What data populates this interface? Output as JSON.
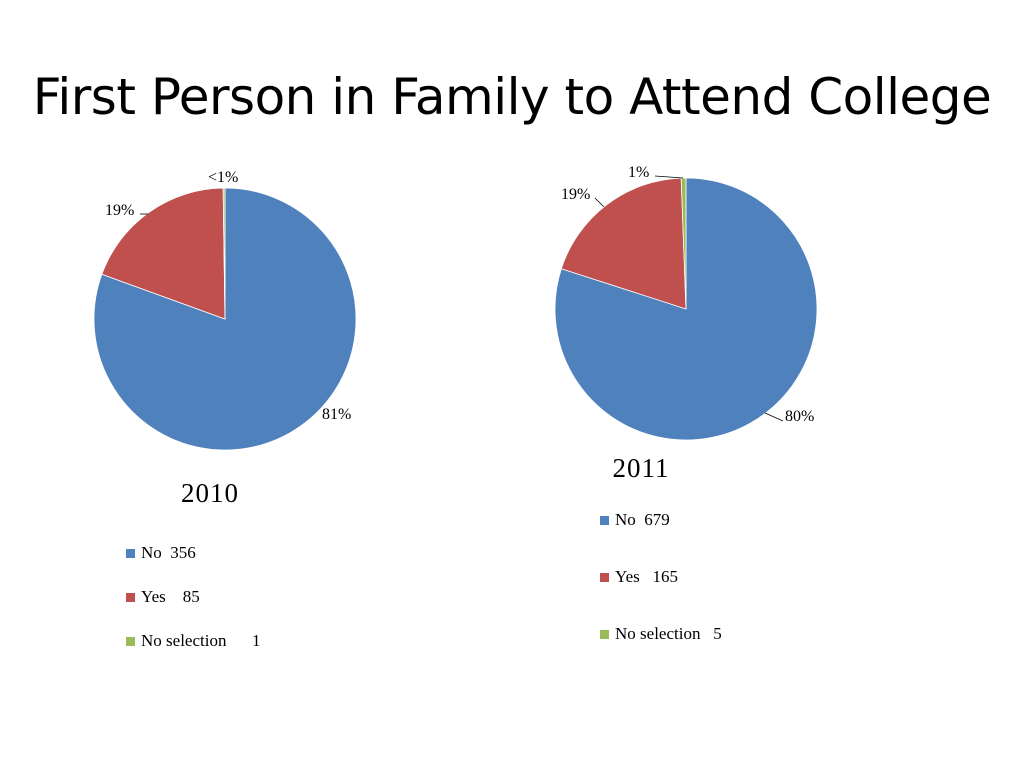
{
  "slide": {
    "title": "First Person in Family to Attend College"
  },
  "chart_data": [
    {
      "type": "pie",
      "title": "2010",
      "categories": [
        "No",
        "Yes",
        "No selection"
      ],
      "values": [
        356,
        85,
        1
      ],
      "colors": [
        "#4f81bd",
        "#c0504d",
        "#9bbb59"
      ],
      "data_labels": [
        "81%",
        "19%",
        "<1%"
      ],
      "legend_entries": [
        "No  356",
        "Yes    85",
        "No selection      1"
      ],
      "legend_position": "bottom"
    },
    {
      "type": "pie",
      "title": "2011",
      "categories": [
        "No",
        "Yes",
        "No selection"
      ],
      "values": [
        679,
        165,
        5
      ],
      "colors": [
        "#4f81bd",
        "#c0504d",
        "#9bbb59"
      ],
      "data_labels": [
        "80%",
        "19%",
        "1%"
      ],
      "legend_entries": [
        "No  679",
        "Yes   165",
        "No selection   5"
      ],
      "legend_position": "bottom"
    }
  ]
}
